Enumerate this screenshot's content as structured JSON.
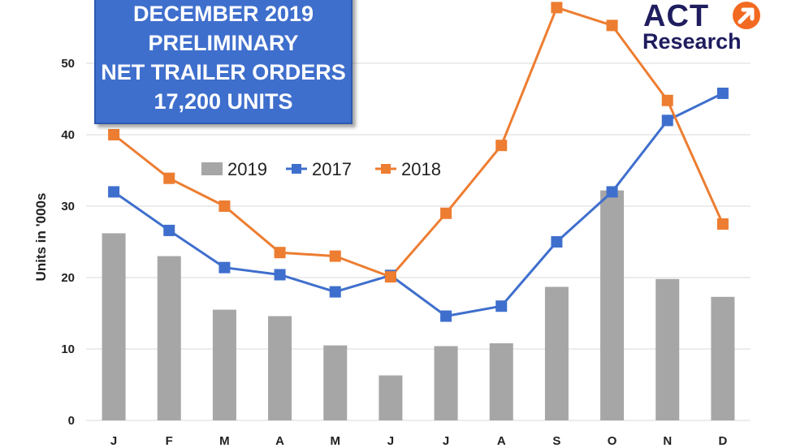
{
  "title_box": {
    "lines": [
      "DECEMBER 2019",
      "PRELIMINARY",
      "NET TRAILER ORDERS",
      "17,200 UNITS"
    ]
  },
  "logo": {
    "brand": "ACT",
    "sub": "Research",
    "icon": "arrow-circle-icon",
    "colors": {
      "text": "#1f1d5e",
      "accent": "#f26a21"
    }
  },
  "chart_data": {
    "type": "bar",
    "categories": [
      "J",
      "F",
      "M",
      "A",
      "M",
      "J",
      "J",
      "A",
      "S",
      "O",
      "N",
      "D"
    ],
    "ylabel": "Units in '000s",
    "ylim": [
      0,
      58
    ],
    "yticks": [
      0,
      10,
      20,
      30,
      40,
      50
    ],
    "grid": true,
    "legend_position": "center-top",
    "series": [
      {
        "name": "2019",
        "type": "bar",
        "color": "#a6a6a6",
        "values": [
          26.2,
          23.0,
          15.5,
          14.6,
          10.5,
          6.3,
          10.4,
          10.8,
          18.7,
          32.2,
          19.8,
          17.3
        ]
      },
      {
        "name": "2017",
        "type": "line",
        "color": "#3f6fcd",
        "values": [
          32.0,
          26.6,
          21.4,
          20.4,
          18.0,
          20.3,
          14.6,
          16.0,
          25.0,
          32.0,
          42.0,
          45.8
        ]
      },
      {
        "name": "2018",
        "type": "line",
        "color": "#ed7d31",
        "values": [
          40.0,
          33.9,
          30.0,
          23.5,
          23.0,
          20.1,
          29.0,
          38.5,
          57.8,
          55.3,
          44.8,
          27.5
        ]
      }
    ]
  }
}
